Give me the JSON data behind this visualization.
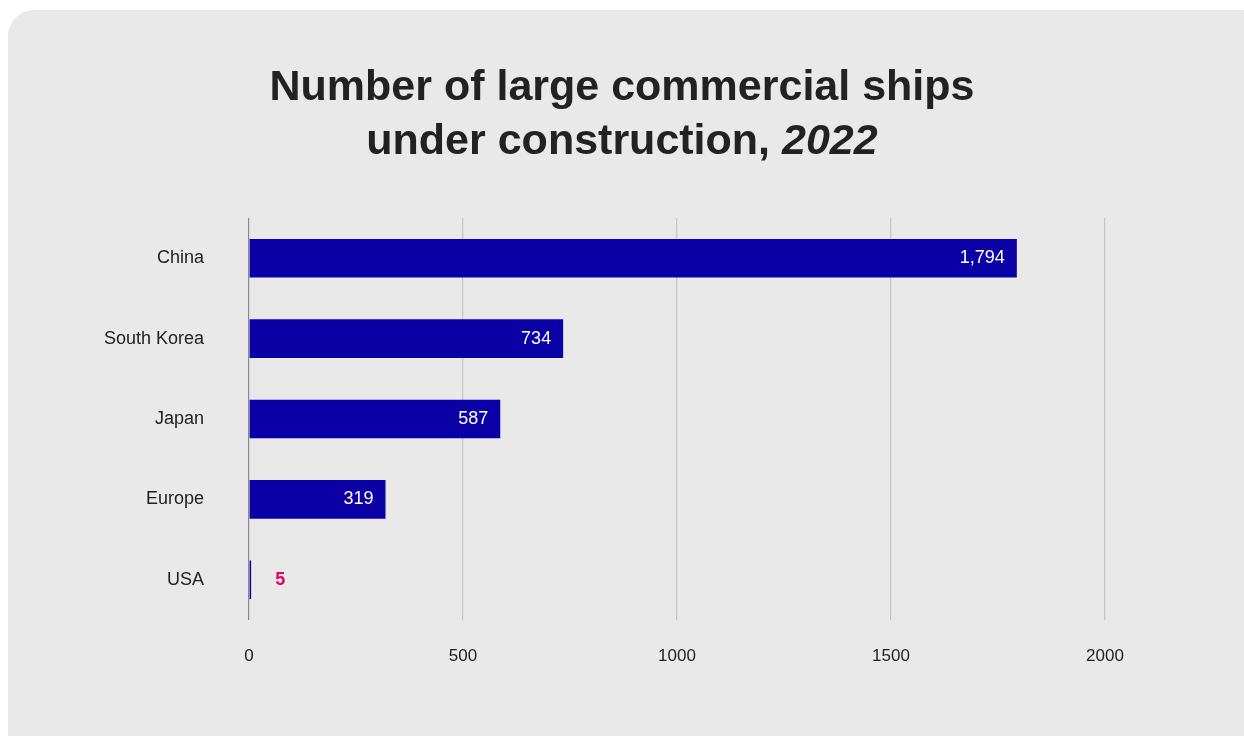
{
  "chart_data": {
    "type": "bar",
    "orientation": "horizontal",
    "title": "Number of large commercial ships under construction, 2022",
    "categories": [
      "China",
      "South Korea",
      "Japan",
      "Europe",
      "USA"
    ],
    "values": [
      1794,
      734,
      587,
      319,
      5
    ],
    "value_labels": [
      "1,794",
      "734",
      "587",
      "319",
      "5"
    ],
    "color": "#0b00a6",
    "xlim": [
      0,
      2000
    ],
    "xticks": [
      0,
      500,
      1000,
      1500,
      2000
    ],
    "grid": "x",
    "legend": false
  }
}
